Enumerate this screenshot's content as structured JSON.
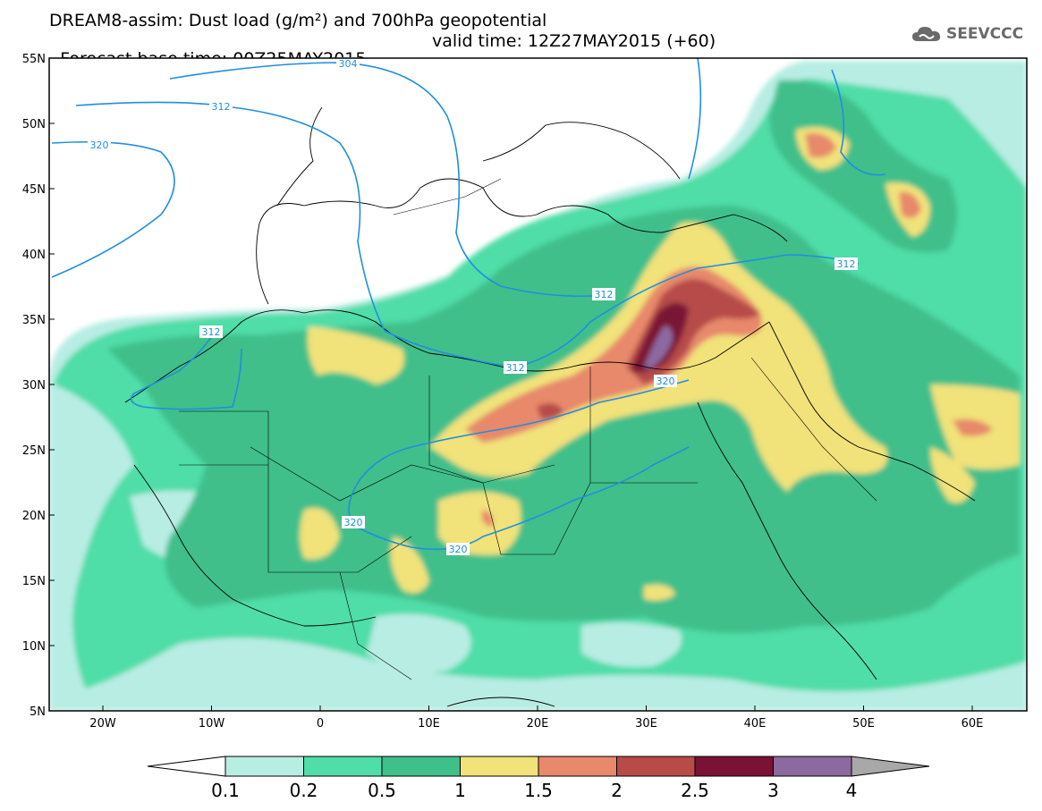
{
  "title": {
    "line1": "DREAM8-assim: Dust load (g/m²) and 700hPa geopotential",
    "line2_base": "Forecast base time: 00Z25MAY2015",
    "line2_valid": "valid time: 12Z27MAY2015 (+60)"
  },
  "logo": {
    "text": "SEEVCCC",
    "icon": "cloud-icon"
  },
  "axes": {
    "lat_labels": [
      "55N",
      "50N",
      "45N",
      "40N",
      "35N",
      "30N",
      "25N",
      "20N",
      "15N",
      "10N",
      "5N"
    ],
    "lon_labels": [
      "20W",
      "10W",
      "0",
      "10E",
      "20E",
      "30E",
      "40E",
      "50E",
      "60E"
    ]
  },
  "contours": {
    "variable": "700hPa geopotential",
    "labels": [
      "304",
      "312",
      "320",
      "312",
      "312",
      "312",
      "320",
      "320",
      "320",
      "312"
    ]
  },
  "colorbar": {
    "labels": [
      "0.1",
      "0.2",
      "0.5",
      "1",
      "1.5",
      "2",
      "2.5",
      "3",
      "4"
    ],
    "colors": [
      "#b8ede3",
      "#4fdda8",
      "#3fbf8a",
      "#f1e27a",
      "#e7896a",
      "#b64b48",
      "#7a1236",
      "#8c6aa0",
      "#a8a8a8"
    ]
  },
  "colors": {
    "geopotential_line": "#1f8fe0",
    "border_line": "#000000",
    "background": "#ffffff"
  }
}
